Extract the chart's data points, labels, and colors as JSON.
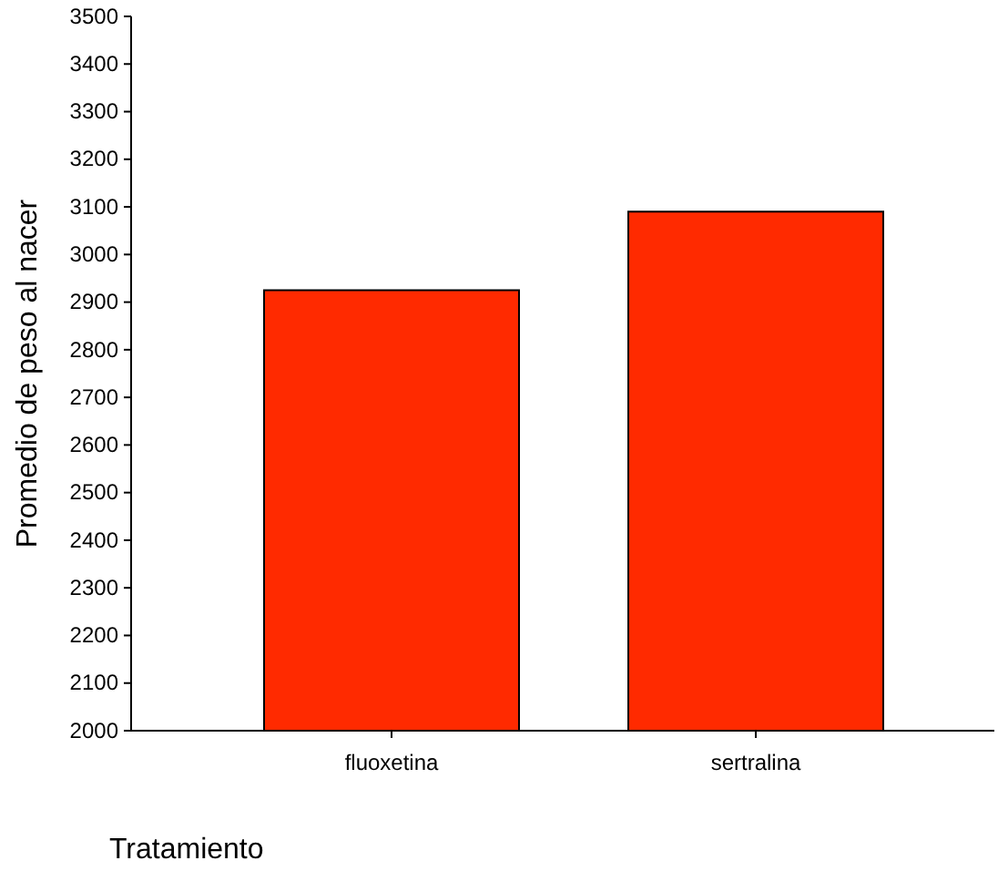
{
  "chart_data": {
    "type": "bar",
    "xlabel": "Tratamiento",
    "ylabel": "Promedio de peso al nacer",
    "categories": [
      "fluoxetina",
      "sertralina"
    ],
    "values": [
      2925,
      3090
    ],
    "color": "#ff2a00",
    "ylim": [
      2000,
      3500
    ],
    "yticks": [
      2000,
      2100,
      2200,
      2300,
      2400,
      2500,
      2600,
      2700,
      2800,
      2900,
      3000,
      3100,
      3200,
      3300,
      3400,
      3500
    ],
    "grid": false
  }
}
